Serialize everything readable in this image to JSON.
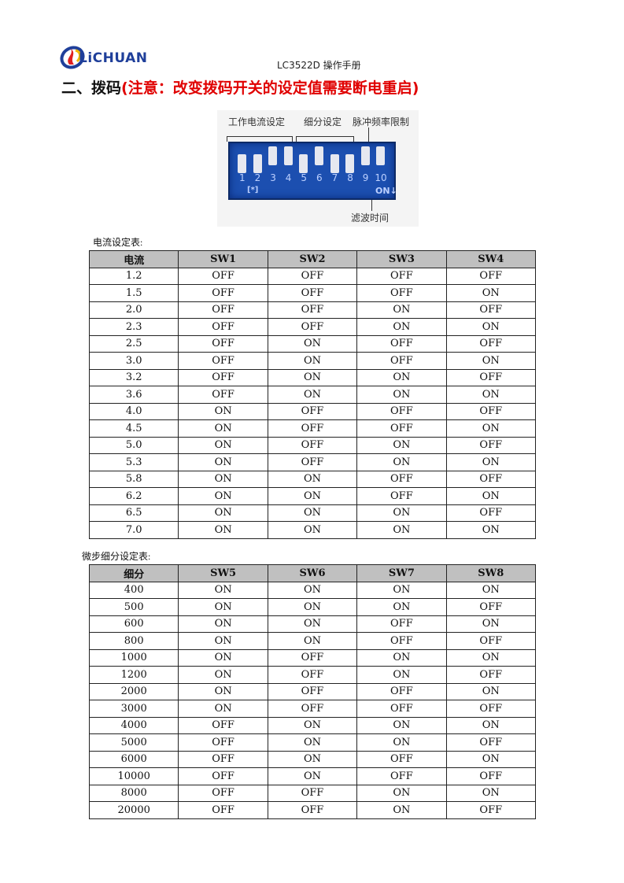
{
  "header": {
    "logo_text": "LiCHUAN",
    "doc_title": "LC3522D 操作手册"
  },
  "heading": {
    "main": "二、拨码",
    "note": "(注意：改变拨码开关的设定值需要断电重启)"
  },
  "dip_figure": {
    "labels": {
      "current": "工作电流设定",
      "microstep": "细分设定",
      "pulse": "脉冲频率限制",
      "filter": "滤波时间",
      "on": "ON↓",
      "mark": "[*]"
    },
    "numbers": [
      "1",
      "2",
      "3",
      "4",
      "5",
      "6",
      "7",
      "8",
      "9",
      "10"
    ],
    "switch_positions": [
      "down",
      "down",
      "up",
      "up",
      "down",
      "up",
      "down",
      "down",
      "up",
      "up"
    ],
    "body_color": "#1c4fb0"
  },
  "current_table": {
    "caption": "电流设定表:",
    "headers": [
      "电流",
      "SW1",
      "SW2",
      "SW3",
      "SW4"
    ],
    "rows": [
      [
        "1.2",
        "OFF",
        "OFF",
        "OFF",
        "OFF"
      ],
      [
        "1.5",
        "OFF",
        "OFF",
        "OFF",
        "ON"
      ],
      [
        "2.0",
        "OFF",
        "OFF",
        "ON",
        "OFF"
      ],
      [
        "2.3",
        "OFF",
        "OFF",
        "ON",
        "ON"
      ],
      [
        "2.5",
        "OFF",
        "ON",
        "OFF",
        "OFF"
      ],
      [
        "3.0",
        "OFF",
        "ON",
        "OFF",
        "ON"
      ],
      [
        "3.2",
        "OFF",
        "ON",
        "ON",
        "OFF"
      ],
      [
        "3.6",
        "OFF",
        "ON",
        "ON",
        "ON"
      ],
      [
        "4.0",
        "ON",
        "OFF",
        "OFF",
        "OFF"
      ],
      [
        "4.5",
        "ON",
        "OFF",
        "OFF",
        "ON"
      ],
      [
        "5.0",
        "ON",
        "OFF",
        "ON",
        "OFF"
      ],
      [
        "5.3",
        "ON",
        "OFF",
        "ON",
        "ON"
      ],
      [
        "5.8",
        "ON",
        "ON",
        "OFF",
        "OFF"
      ],
      [
        "6.2",
        "ON",
        "ON",
        "OFF",
        "ON"
      ],
      [
        "6.5",
        "ON",
        "ON",
        "ON",
        "OFF"
      ],
      [
        "7.0",
        "ON",
        "ON",
        "ON",
        "ON"
      ]
    ]
  },
  "microstep_table": {
    "caption": "微步细分设定表:",
    "headers": [
      "细分",
      "SW5",
      "SW6",
      "SW7",
      "SW8"
    ],
    "rows": [
      [
        "400",
        "ON",
        "ON",
        "ON",
        "ON"
      ],
      [
        "500",
        "ON",
        "ON",
        "ON",
        "OFF"
      ],
      [
        "600",
        "ON",
        "ON",
        "OFF",
        "ON"
      ],
      [
        "800",
        "ON",
        "ON",
        "OFF",
        "OFF"
      ],
      [
        "1000",
        "ON",
        "OFF",
        "ON",
        "ON"
      ],
      [
        "1200",
        "ON",
        "OFF",
        "ON",
        "OFF"
      ],
      [
        "2000",
        "ON",
        "OFF",
        "OFF",
        "ON"
      ],
      [
        "3000",
        "ON",
        "OFF",
        "OFF",
        "OFF"
      ],
      [
        "4000",
        "OFF",
        "ON",
        "ON",
        "ON"
      ],
      [
        "5000",
        "OFF",
        "ON",
        "ON",
        "OFF"
      ],
      [
        "6000",
        "OFF",
        "ON",
        "OFF",
        "ON"
      ],
      [
        "10000",
        "OFF",
        "ON",
        "OFF",
        "OFF"
      ],
      [
        "8000",
        "OFF",
        "OFF",
        "ON",
        "ON"
      ],
      [
        "20000",
        "OFF",
        "OFF",
        "ON",
        "OFF"
      ]
    ]
  }
}
